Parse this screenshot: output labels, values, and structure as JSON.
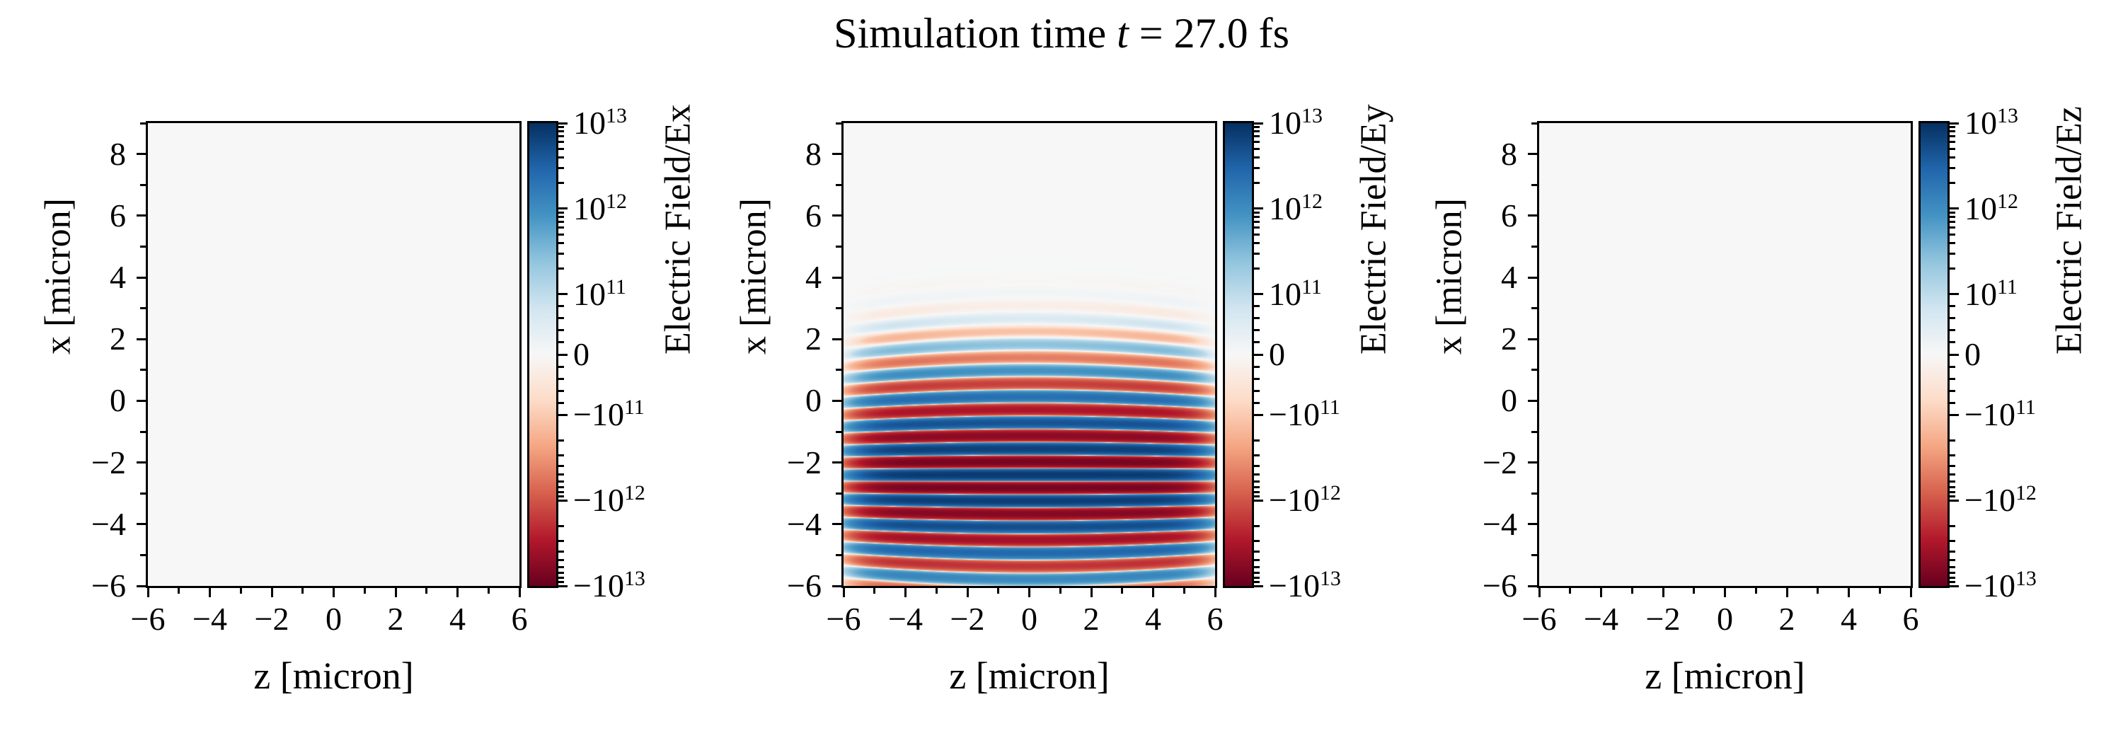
{
  "title": {
    "prefix": "Simulation time ",
    "var": "t",
    "suffix": " = 27.0 fs"
  },
  "figure": {
    "background": "#ffffff",
    "plot_background": "#f7f7f7",
    "spine_color": "#000000",
    "text_color": "#000000"
  },
  "axes": {
    "xlabel": "z [micron]",
    "ylabel": "x [micron]",
    "xlim": [
      -6,
      6
    ],
    "ylim": [
      -6,
      9
    ],
    "xticks": [
      -6,
      -4,
      -2,
      0,
      2,
      4,
      6
    ],
    "xtick_labels": [
      "−6",
      "−4",
      "−2",
      "0",
      "2",
      "4",
      "6"
    ],
    "xminor": [
      -5,
      -3,
      -1,
      1,
      3,
      5
    ],
    "yticks": [
      8,
      6,
      4,
      2,
      0,
      -2,
      -4,
      -6
    ],
    "ytick_labels": [
      "8",
      "6",
      "4",
      "2",
      "0",
      "−2",
      "−4",
      "−6"
    ],
    "yminor": [
      9,
      7,
      5,
      3,
      1,
      -1,
      -3,
      -5
    ]
  },
  "colorbar": {
    "vmin": -10000000000000.0,
    "vmax": 10000000000000.0,
    "scale": "symlog",
    "linthresh": 100000000000.0,
    "colormap": "RdBu",
    "colormap_stops": [
      "#67001f",
      "#b2182b",
      "#d6604d",
      "#f4a582",
      "#fddbc7",
      "#f7f7f7",
      "#d1e5f0",
      "#92c5de",
      "#4393c3",
      "#2166ac",
      "#053061"
    ],
    "tick_values": [
      10000000000000.0,
      1000000000000.0,
      100000000000.0,
      0,
      -100000000000.0,
      -1000000000000.0,
      -10000000000000.0
    ],
    "tick_labels": [
      "10^13",
      "10^12",
      "10^11",
      "0",
      "−10^11",
      "−10^12",
      "−10^13"
    ]
  },
  "panels": [
    {
      "id": "Ex",
      "colorbar_label": "Electric Field/Ex",
      "has_field": false
    },
    {
      "id": "Ey",
      "colorbar_label": "Electric Field/Ey",
      "has_field": true
    },
    {
      "id": "Ez",
      "colorbar_label": "Electric Field/Ez",
      "has_field": false
    }
  ],
  "chart_data": {
    "type": "heatmap",
    "title": "Simulation time t = 27.0 fs",
    "time_fs": 27.0,
    "xlabel": "z [micron]",
    "ylabel": "x [micron]",
    "xlim": [
      -6,
      6
    ],
    "ylim": [
      -6,
      9
    ],
    "value_scale": "symlog",
    "linthresh": 100000000000.0,
    "vmin": -10000000000000.0,
    "vmax": 10000000000000.0,
    "colormap": "RdBu",
    "panels": [
      {
        "field": "Ex",
        "colorbar_label": "Electric Field/Ex",
        "description": "field approximately zero everywhere (uniform near-white map)",
        "model": {
          "amplitude": 0
        }
      },
      {
        "field": "Ey",
        "colorbar_label": "Electric Field/Ey",
        "description": "linearly polarized laser pulse propagating in +x: horizontal red/blue fringes from x=-6 to x=2, strongest near x=-2.5, fringes bow away from pulse center at |z|=6, amplitude fades near z=+-6",
        "model": {
          "amplitude": 8000000000000.0,
          "wavelength_um": 0.85,
          "front_crest_x_um": 1.85,
          "envelope_x_center_um": -2.5,
          "envelope_x_sigma_um": 1.65,
          "envelope_z_flattop_um": 5.5,
          "envelope_z_power": 10,
          "wavefront_curvature_per_um": 0.0024
        }
      },
      {
        "field": "Ez",
        "colorbar_label": "Electric Field/Ez",
        "description": "field approximately zero everywhere (uniform near-white map)",
        "model": {
          "amplitude": 0
        }
      }
    ]
  }
}
